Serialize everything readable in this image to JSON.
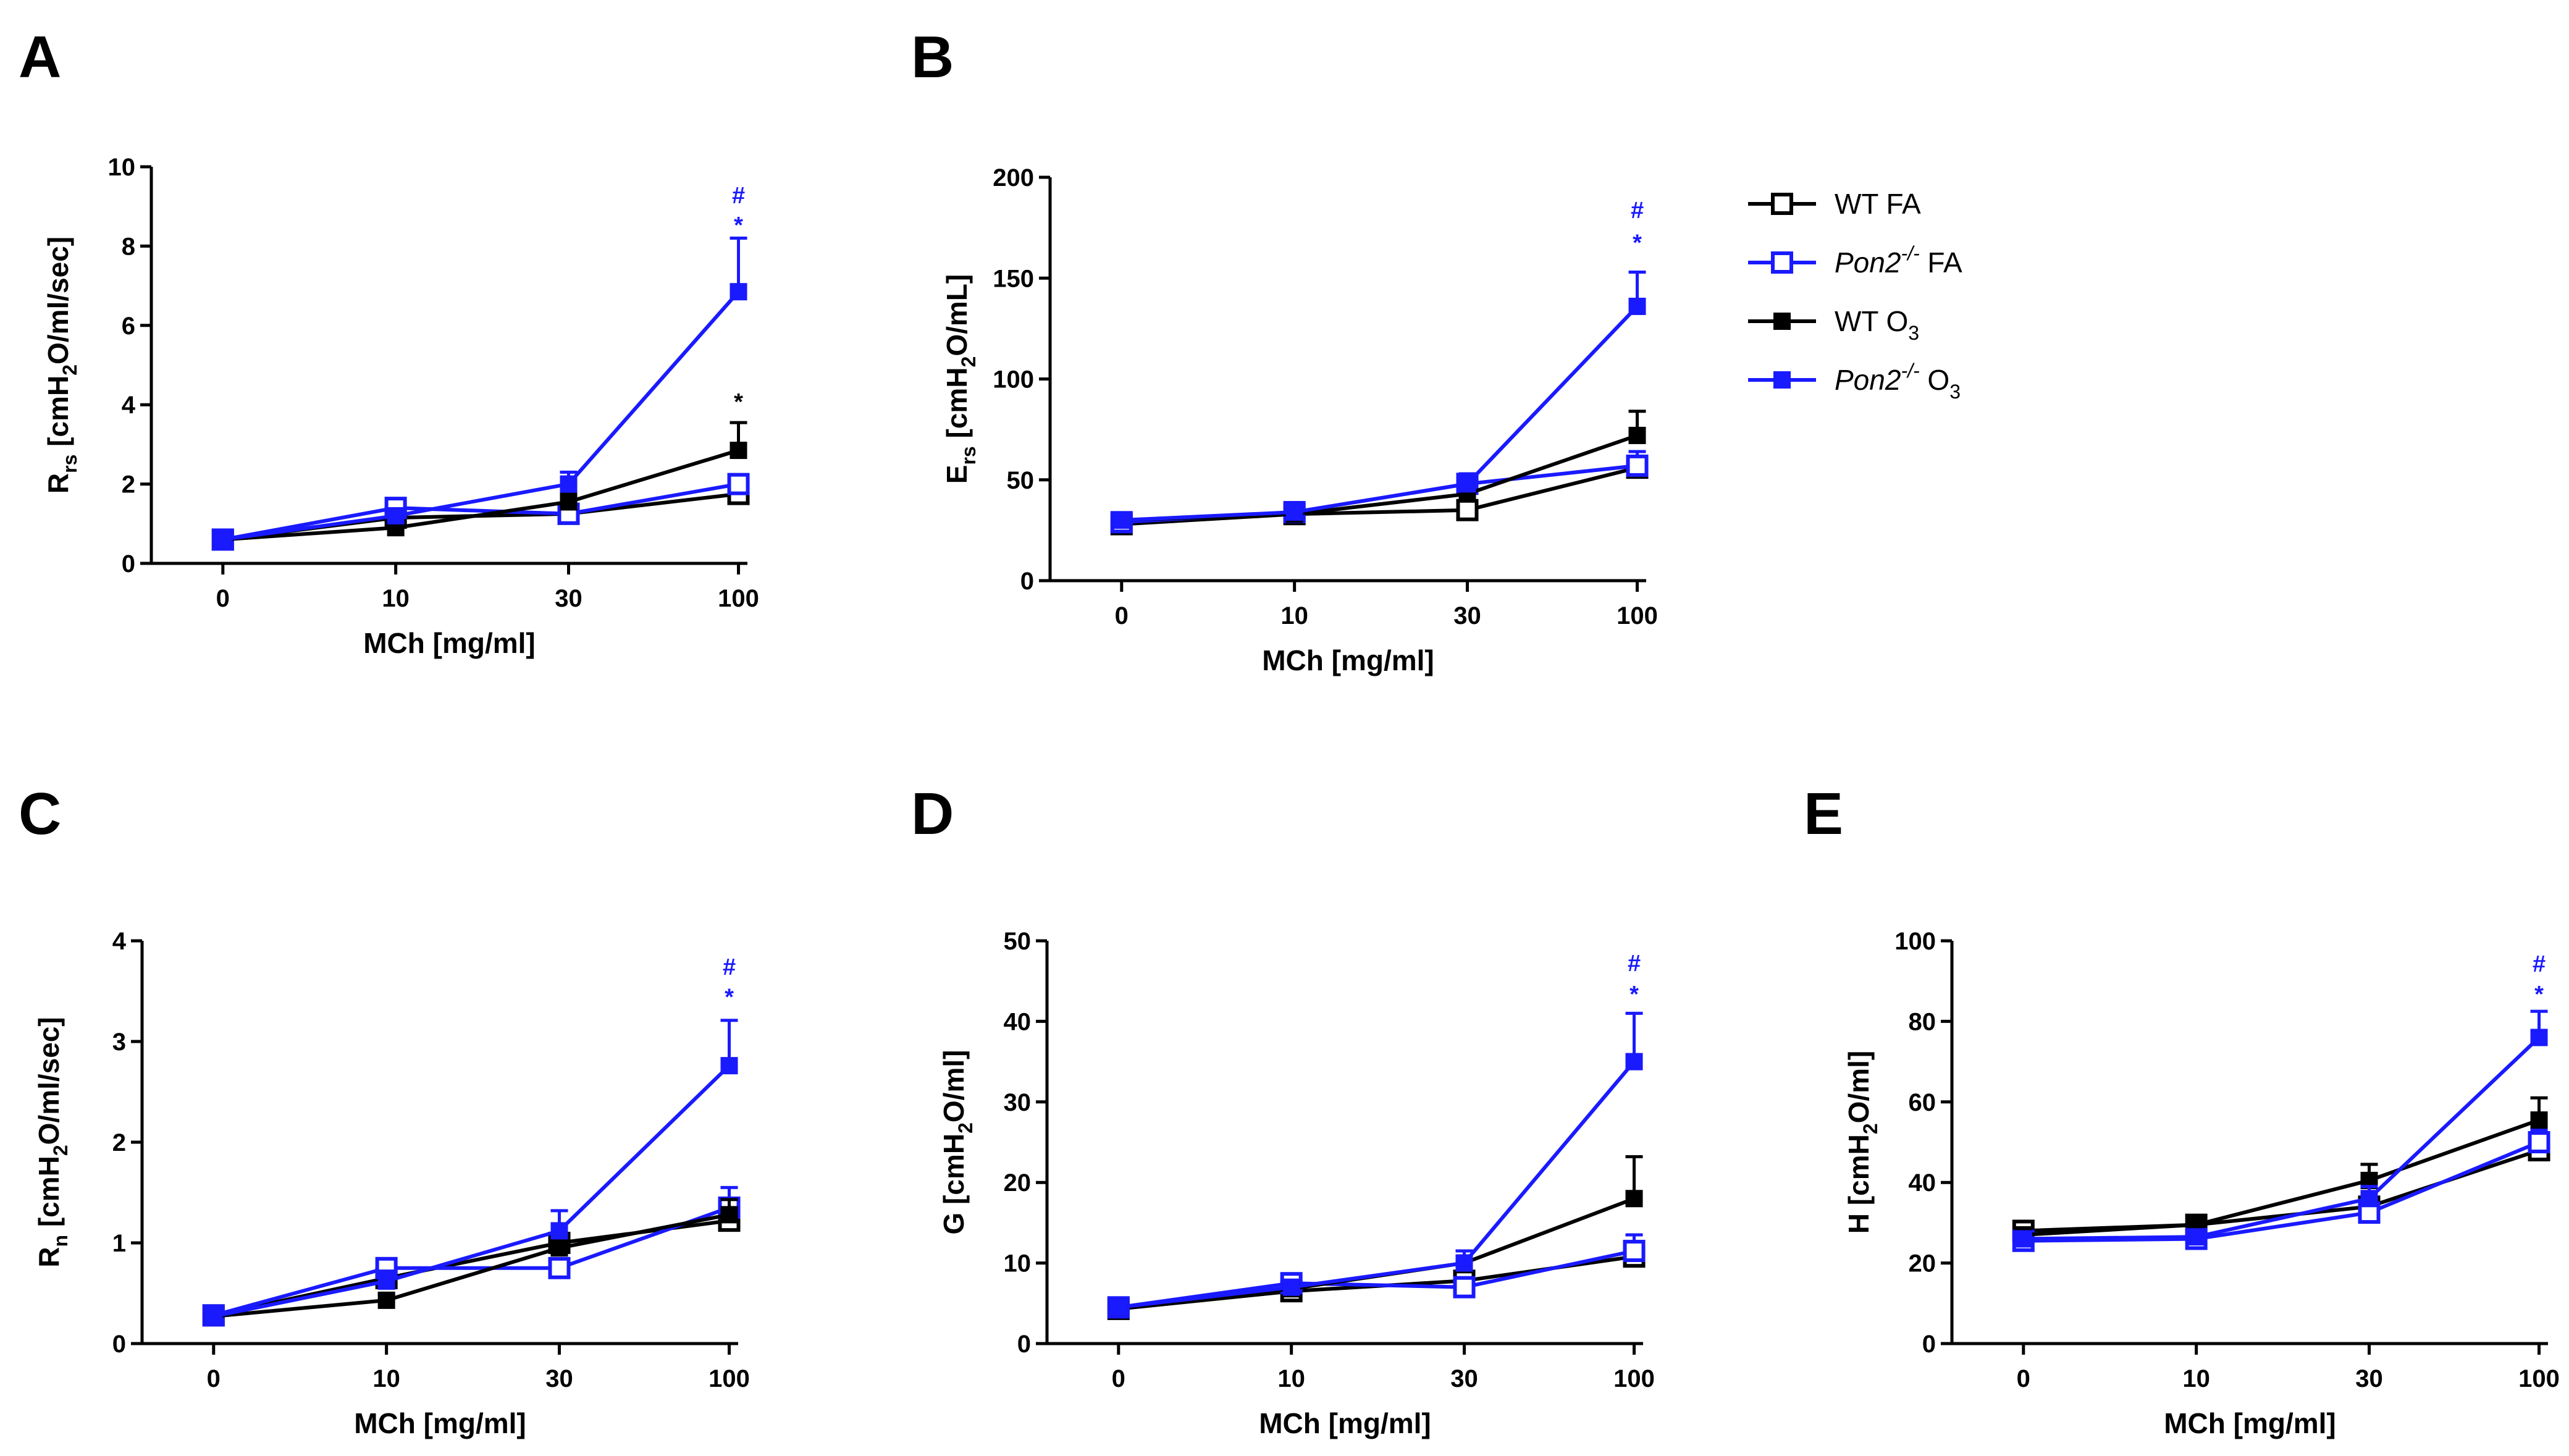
{
  "figure": {
    "legend": [
      {
        "key": "wt_fa",
        "label": "WT FA",
        "italic": "",
        "sup": "",
        "sub": "",
        "tail": ""
      },
      {
        "key": "pon2_fa",
        "label": "",
        "italic": "Pon2",
        "sup": "-/-",
        "sub": "",
        "tail": " FA"
      },
      {
        "key": "wt_o3",
        "label": "WT O",
        "italic": "",
        "sup": "",
        "sub": "3",
        "tail": ""
      },
      {
        "key": "pon2_o3",
        "label": "",
        "italic": "Pon2",
        "sup": "-/-",
        "sub": "3",
        "tail": " O"
      }
    ],
    "series_styles": {
      "wt_fa": {
        "color": "#000000",
        "filled": false
      },
      "pon2_fa": {
        "color": "#1a1aff",
        "filled": false
      },
      "wt_o3": {
        "color": "#000000",
        "filled": true
      },
      "pon2_o3": {
        "color": "#1a1aff",
        "filled": true
      }
    }
  },
  "chart_data": [
    {
      "panel": "A",
      "type": "line",
      "categories": [
        "0",
        "10",
        "30",
        "100"
      ],
      "xlabel": "MCh [mg/ml]",
      "ylabel": {
        "main": "R",
        "sub": "rs",
        "rest": " [cmH",
        "sub2": "2",
        "tail": "O/ml/sec]"
      },
      "ylim": [
        0,
        10
      ],
      "yticks": [
        0,
        2,
        4,
        6,
        8,
        10
      ],
      "series": [
        {
          "key": "wt_fa",
          "values": [
            0.6,
            1.15,
            1.25,
            1.75
          ],
          "errors": [
            0.08,
            0.15,
            0.15,
            0.15
          ]
        },
        {
          "key": "pon2_fa",
          "values": [
            0.6,
            1.4,
            1.25,
            2.0
          ],
          "errors": [
            0.08,
            0.2,
            0.15,
            0.2
          ]
        },
        {
          "key": "wt_o3",
          "values": [
            0.6,
            0.9,
            1.55,
            2.85
          ],
          "errors": [
            0.08,
            0.1,
            0.2,
            0.7
          ]
        },
        {
          "key": "pon2_o3",
          "values": [
            0.6,
            1.2,
            2.0,
            6.85
          ],
          "errors": [
            0.08,
            0.15,
            0.3,
            1.35
          ]
        }
      ],
      "annotations": [
        {
          "x": "100",
          "y": 8.55,
          "text": "*",
          "color": "#1a1aff"
        },
        {
          "x": "100",
          "y": 9.3,
          "text": "#",
          "color": "#1a1aff"
        },
        {
          "x": "100",
          "y": 4.1,
          "text": "*",
          "color": "#000000"
        }
      ]
    },
    {
      "panel": "B",
      "type": "line",
      "categories": [
        "0",
        "10",
        "30",
        "100"
      ],
      "xlabel": "MCh [mg/ml]",
      "ylabel": {
        "main": "E",
        "sub": "rs",
        "rest": " [cmH",
        "sub2": "2",
        "tail": "O/mL]"
      },
      "ylim": [
        0,
        200
      ],
      "yticks": [
        0,
        50,
        100,
        150,
        200
      ],
      "series": [
        {
          "key": "wt_fa",
          "values": [
            28,
            33,
            35,
            56
          ],
          "errors": [
            3,
            3,
            3,
            5
          ]
        },
        {
          "key": "pon2_fa",
          "values": [
            29,
            34,
            48,
            57
          ],
          "errors": [
            3,
            3,
            4,
            7
          ]
        },
        {
          "key": "wt_o3",
          "values": [
            30,
            33,
            43,
            72
          ],
          "errors": [
            3,
            3,
            5,
            12
          ]
        },
        {
          "key": "pon2_o3",
          "values": [
            30,
            34,
            48,
            136
          ],
          "errors": [
            3,
            3,
            5,
            17
          ]
        }
      ],
      "annotations": [
        {
          "x": "100",
          "y": 168,
          "text": "*",
          "color": "#1a1aff"
        },
        {
          "x": "100",
          "y": 184,
          "text": "#",
          "color": "#1a1aff"
        }
      ]
    },
    {
      "panel": "C",
      "type": "line",
      "categories": [
        "0",
        "10",
        "30",
        "100"
      ],
      "xlabel": "MCh [mg/ml]",
      "ylabel": {
        "main": "R",
        "sub": "n",
        "rest": " [cmH",
        "sub2": "2",
        "tail": "O/ml/sec]"
      },
      "ylim": [
        0,
        4
      ],
      "yticks": [
        0,
        1,
        2,
        3,
        4
      ],
      "series": [
        {
          "key": "wt_fa",
          "values": [
            0.28,
            0.65,
            1.0,
            1.22
          ],
          "errors": [
            0.04,
            0.08,
            0.1,
            0.1
          ]
        },
        {
          "key": "pon2_fa",
          "values": [
            0.28,
            0.75,
            0.75,
            1.35
          ],
          "errors": [
            0.04,
            0.08,
            0.08,
            0.2
          ]
        },
        {
          "key": "wt_o3",
          "values": [
            0.27,
            0.43,
            0.95,
            1.28
          ],
          "errors": [
            0.04,
            0.06,
            0.1,
            0.15
          ]
        },
        {
          "key": "pon2_o3",
          "values": [
            0.27,
            0.62,
            1.12,
            2.76
          ],
          "errors": [
            0.04,
            0.1,
            0.2,
            0.45
          ]
        }
      ],
      "annotations": [
        {
          "x": "100",
          "y": 3.45,
          "text": "*",
          "color": "#1a1aff"
        },
        {
          "x": "100",
          "y": 3.75,
          "text": "#",
          "color": "#1a1aff"
        }
      ]
    },
    {
      "panel": "D",
      "type": "line",
      "categories": [
        "0",
        "10",
        "30",
        "100"
      ],
      "xlabel": "MCh [mg/ml]",
      "ylabel": {
        "main": "G",
        "sub": "",
        "rest": " [cmH",
        "sub2": "2",
        "tail": "O/ml]"
      },
      "ylim": [
        0,
        50
      ],
      "yticks": [
        0,
        10,
        20,
        30,
        40,
        50
      ],
      "series": [
        {
          "key": "wt_fa",
          "values": [
            4.3,
            6.5,
            7.8,
            10.8
          ],
          "errors": [
            0.8,
            0.8,
            1.0,
            1.2
          ]
        },
        {
          "key": "pon2_fa",
          "values": [
            4.5,
            7.5,
            7.0,
            11.5
          ],
          "errors": [
            0.8,
            1.0,
            1.0,
            2.0
          ]
        },
        {
          "key": "wt_o3",
          "values": [
            4.5,
            6.8,
            10.0,
            18.0
          ],
          "errors": [
            0.8,
            0.8,
            1.5,
            5.2
          ]
        },
        {
          "key": "pon2_o3",
          "values": [
            4.5,
            7.0,
            10.0,
            35.0
          ],
          "errors": [
            0.8,
            0.8,
            1.5,
            6.0
          ]
        }
      ],
      "annotations": [
        {
          "x": "100",
          "y": 43.5,
          "text": "*",
          "color": "#1a1aff"
        },
        {
          "x": "100",
          "y": 47.3,
          "text": "#",
          "color": "#1a1aff"
        }
      ]
    },
    {
      "panel": "E",
      "type": "line",
      "categories": [
        "0",
        "10",
        "30",
        "100"
      ],
      "xlabel": "MCh [mg/ml]",
      "ylabel": {
        "main": "H",
        "sub": "",
        "rest": " [cmH",
        "sub2": "2",
        "tail": "O/ml]"
      },
      "ylim": [
        0,
        100
      ],
      "yticks": [
        0,
        20,
        40,
        60,
        80,
        100
      ],
      "series": [
        {
          "key": "wt_fa",
          "values": [
            28.0,
            29.5,
            34.0,
            48.0
          ],
          "errors": [
            1.5,
            1.5,
            2.0,
            2.5
          ]
        },
        {
          "key": "pon2_fa",
          "values": [
            25.5,
            26.0,
            32.5,
            50.0
          ],
          "errors": [
            1.5,
            1.5,
            2.0,
            3.0
          ]
        },
        {
          "key": "wt_o3",
          "values": [
            27.0,
            29.5,
            40.5,
            55.5
          ],
          "errors": [
            1.5,
            1.5,
            4.0,
            5.5
          ]
        },
        {
          "key": "pon2_o3",
          "values": [
            26.0,
            26.5,
            36.0,
            76.0
          ],
          "errors": [
            1.5,
            1.5,
            3.0,
            6.5
          ]
        }
      ],
      "annotations": [
        {
          "x": "100",
          "y": 87.0,
          "text": "*",
          "color": "#1a1aff"
        },
        {
          "x": "100",
          "y": 94.5,
          "text": "#",
          "color": "#1a1aff"
        }
      ]
    }
  ]
}
